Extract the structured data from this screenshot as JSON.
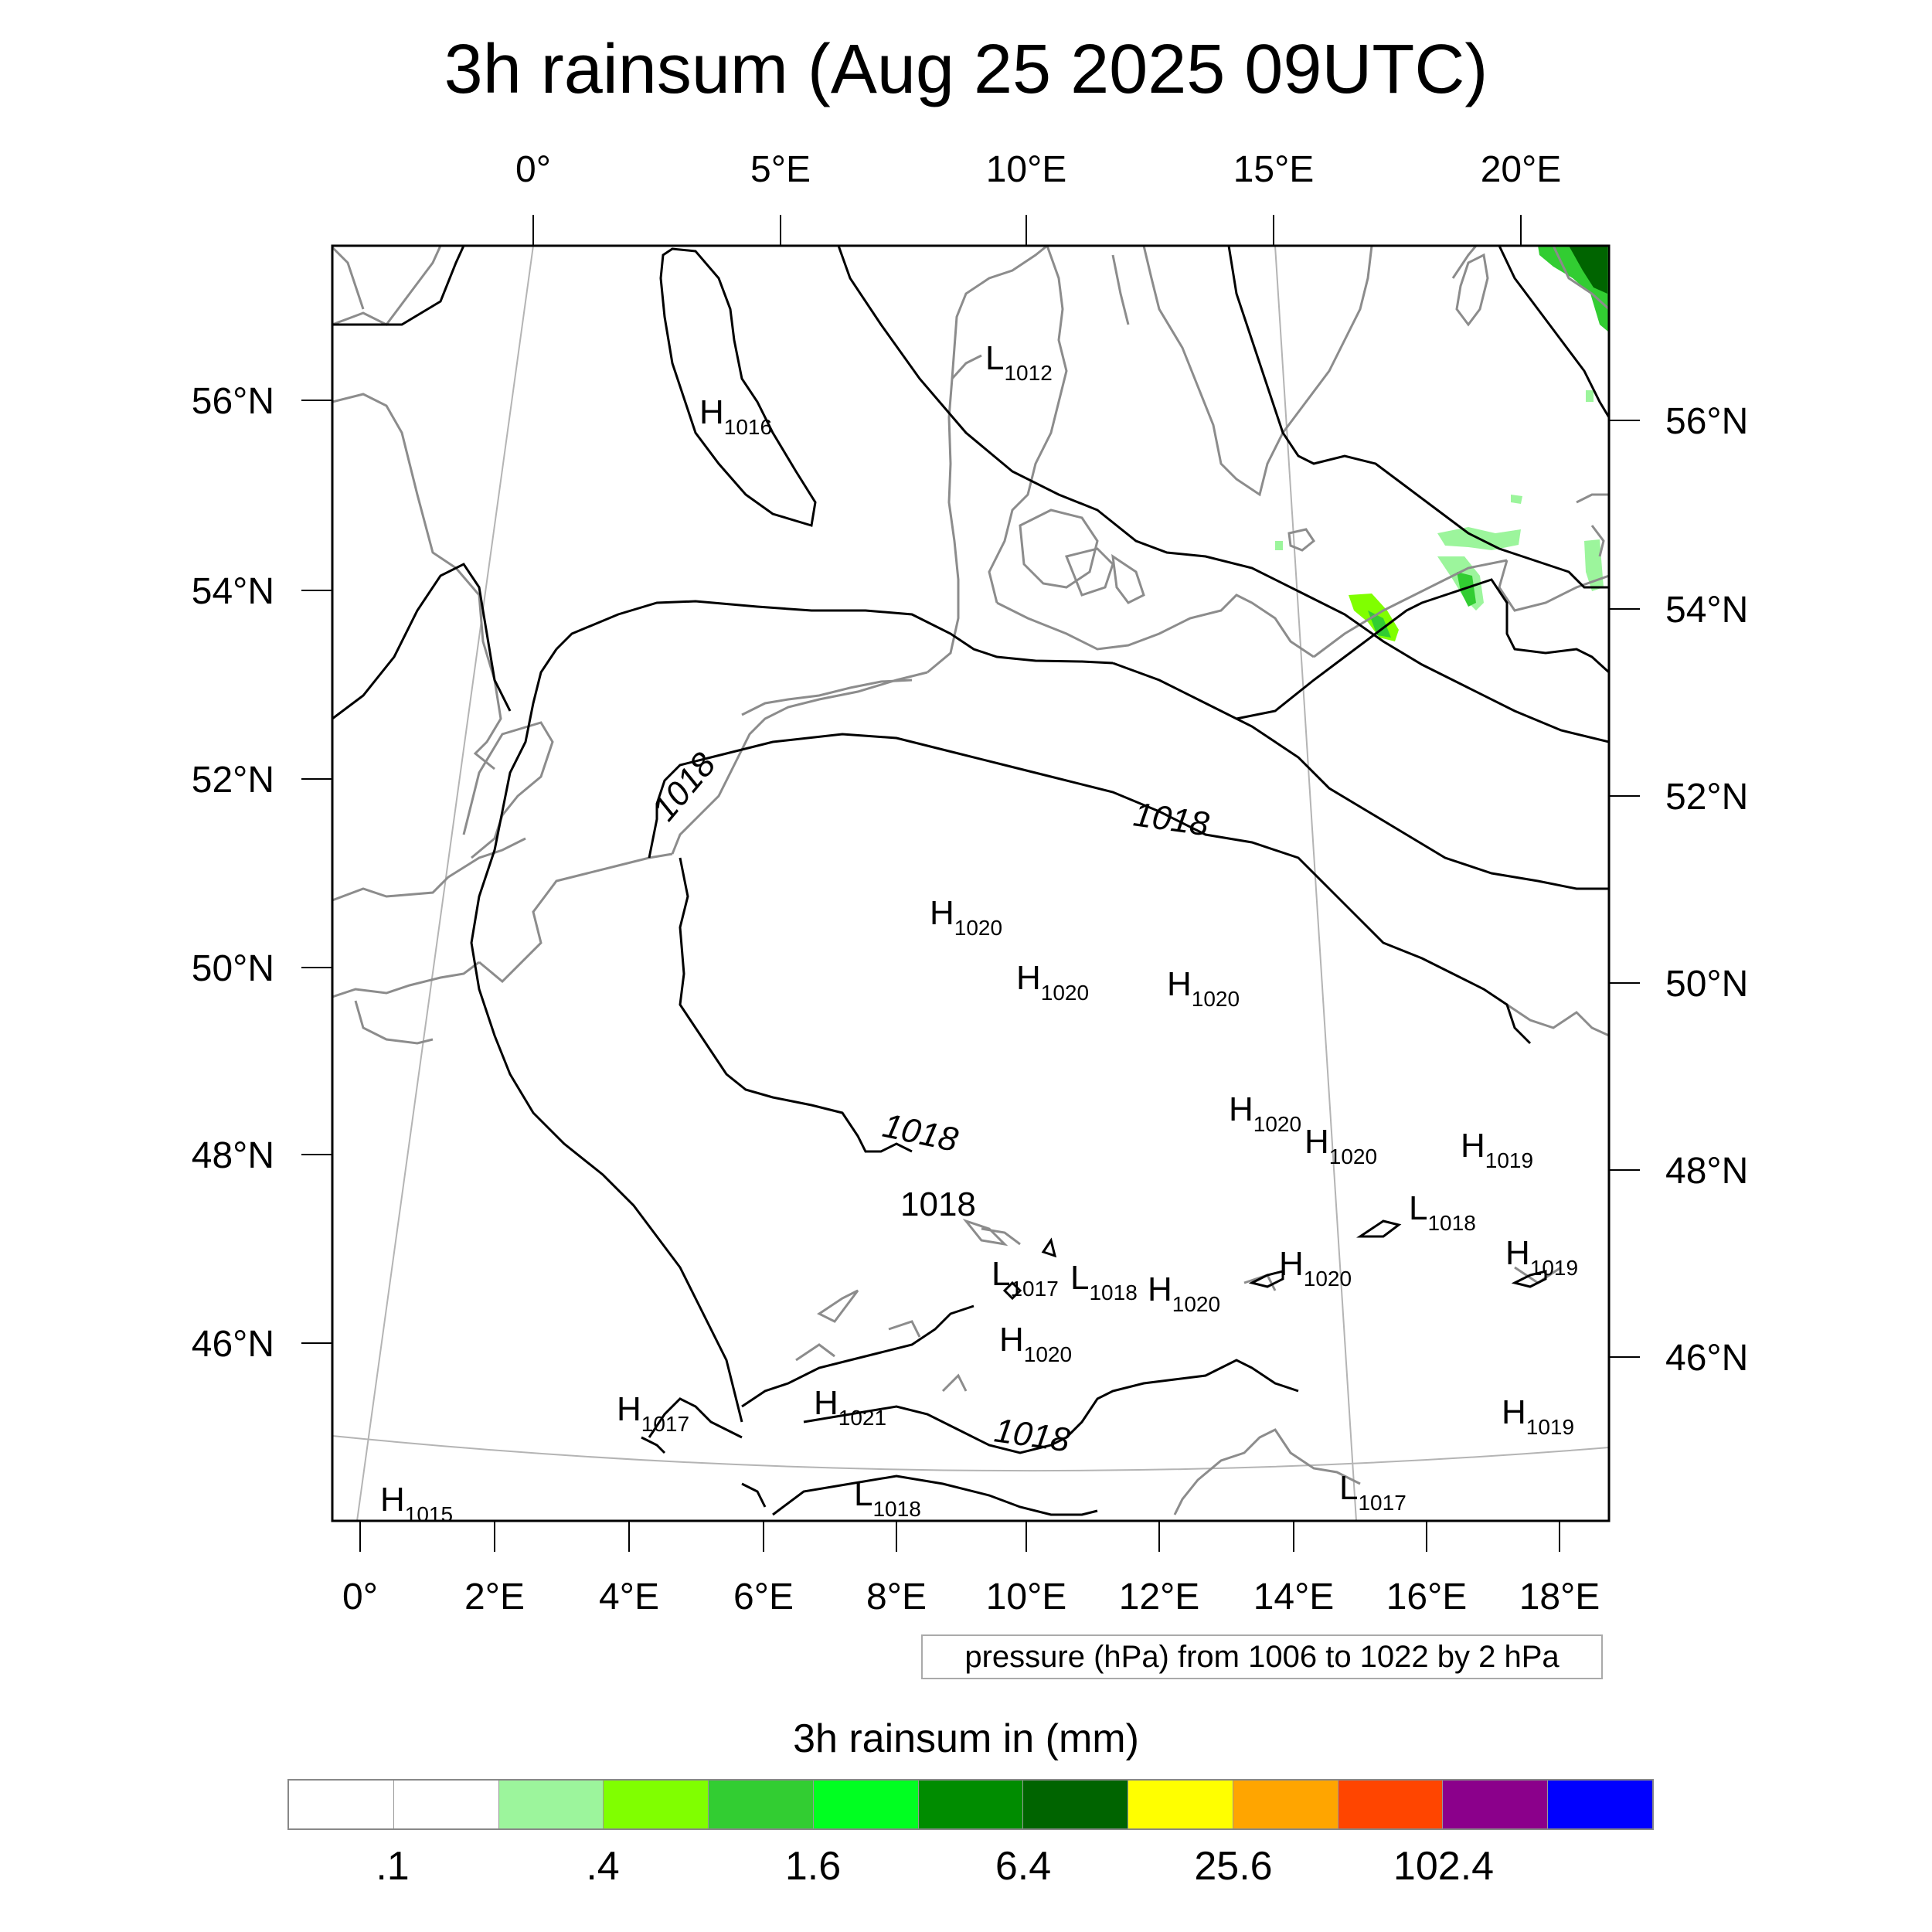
{
  "title": "3h rainsum (Aug 25 2025 09UTC)",
  "map": {
    "top_lon_labels": [
      "0°",
      "5°E",
      "10°E",
      "15°E",
      "20°E"
    ],
    "bottom_lon_labels": [
      "0°",
      "2°E",
      "4°E",
      "6°E",
      "8°E",
      "10°E",
      "12°E",
      "14°E",
      "16°E",
      "18°E"
    ],
    "left_lat_labels": [
      "56°N",
      "54°N",
      "52°N",
      "50°N",
      "48°N",
      "46°N"
    ],
    "right_lat_labels": [
      "56°N",
      "54°N",
      "52°N",
      "50°N",
      "48°N",
      "46°N"
    ],
    "contour_labels": [
      "1018",
      "1018",
      "1018",
      "1018",
      "1018"
    ],
    "pressure_centers": [
      {
        "letter": "L",
        "value": "1012"
      },
      {
        "letter": "H",
        "value": "1016"
      },
      {
        "letter": "H",
        "value": "1020"
      },
      {
        "letter": "H",
        "value": "1020"
      },
      {
        "letter": "H",
        "value": "1020"
      },
      {
        "letter": "H",
        "value": "1020"
      },
      {
        "letter": "H",
        "value": "1020"
      },
      {
        "letter": "H",
        "value": "1019"
      },
      {
        "letter": "L",
        "value": "1018"
      },
      {
        "letter": "H",
        "value": "1020"
      },
      {
        "letter": "H",
        "value": "1019"
      },
      {
        "letter": "L",
        "value": "1017"
      },
      {
        "letter": "L",
        "value": "1018"
      },
      {
        "letter": "H",
        "value": "1020"
      },
      {
        "letter": "H",
        "value": "1020"
      },
      {
        "letter": "H",
        "value": "1017"
      },
      {
        "letter": "H",
        "value": "1021"
      },
      {
        "letter": "H",
        "value": "1015"
      },
      {
        "letter": "L",
        "value": "1018"
      },
      {
        "letter": "H",
        "value": "1019"
      },
      {
        "letter": "L",
        "value": "1017"
      }
    ],
    "colors": {
      "coast": "#8c8c8c",
      "contour": "#000000",
      "grid": "#b4b4b4"
    }
  },
  "pressure_note": "pressure (hPa) from 1006 to 1022 by 2 hPa",
  "colorbar": {
    "title": "3h rainsum in (mm)",
    "colors": [
      "#ffffff",
      "#ffffff",
      "#9cf59c",
      "#80ff00",
      "#32cd32",
      "#00ff21",
      "#008c00",
      "#006400",
      "#ffff00",
      "#ffa500",
      "#ff4500",
      "#8b008b",
      "#0000ff"
    ],
    "tick_labels": [
      ".1",
      ".4",
      "1.6",
      "6.4",
      "25.6",
      "102.4"
    ]
  }
}
